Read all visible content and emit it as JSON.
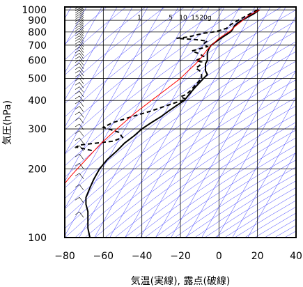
{
  "chart_data": {
    "type": "line",
    "title": "",
    "xlabel": "気温(実線), 露点(破線)",
    "ylabel": "気圧(hPa)",
    "xlim": [
      -80,
      40
    ],
    "ylim": [
      1030,
      100
    ],
    "y_scale": "log",
    "grid": true,
    "x_ticks": [
      -80,
      -60,
      -40,
      -20,
      0,
      20,
      40
    ],
    "x_tick_labels": [
      "−80",
      "−60",
      "−40",
      "−20",
      "0",
      "20",
      "40"
    ],
    "y_ticks": [
      100,
      200,
      300,
      400,
      500,
      600,
      700,
      800,
      900,
      1000
    ],
    "y_tick_labels": [
      "100",
      "200",
      "300",
      "400",
      "500",
      "600",
      "700",
      "800",
      "900",
      "1000"
    ],
    "mixing_ratio_labels": [
      {
        "text": "1",
        "value": 1
      },
      {
        "text": "5",
        "value": 5
      },
      {
        "text": "10",
        "value": 10
      },
      {
        "text": "15",
        "value": 15
      },
      {
        "text": "20g",
        "value": 20
      }
    ],
    "series": [
      {
        "key": "temperature",
        "style": "solid",
        "color": "#000000",
        "points": [
          [
            21,
            1000
          ],
          [
            18,
            960
          ],
          [
            14,
            920
          ],
          [
            10,
            880
          ],
          [
            8,
            850
          ],
          [
            7,
            820
          ],
          [
            6,
            800
          ],
          [
            4,
            780
          ],
          [
            2,
            760
          ],
          [
            0,
            740
          ],
          [
            -2,
            720
          ],
          [
            -4,
            700
          ],
          [
            -5,
            680
          ],
          [
            -6,
            650
          ],
          [
            -6,
            620
          ],
          [
            -6,
            600
          ],
          [
            -7,
            580
          ],
          [
            -7,
            560
          ],
          [
            -7,
            540
          ],
          [
            -6,
            520
          ],
          [
            -8,
            500
          ],
          [
            -10,
            480
          ],
          [
            -12,
            460
          ],
          [
            -14,
            440
          ],
          [
            -16,
            420
          ],
          [
            -18,
            400
          ],
          [
            -22,
            380
          ],
          [
            -26,
            360
          ],
          [
            -30,
            340
          ],
          [
            -35,
            320
          ],
          [
            -40,
            300
          ],
          [
            -44,
            280
          ],
          [
            -49,
            260
          ],
          [
            -53,
            240
          ],
          [
            -58,
            220
          ],
          [
            -62,
            200
          ],
          [
            -65,
            180
          ],
          [
            -67,
            165
          ],
          [
            -69,
            150
          ],
          [
            -69,
            140
          ],
          [
            -68,
            130
          ],
          [
            -68,
            120
          ],
          [
            -68,
            110
          ],
          [
            -67,
            100
          ]
        ]
      },
      {
        "key": "dewpoint",
        "style": "dashed",
        "color": "#000000",
        "points": [
          [
            20,
            1000
          ],
          [
            16,
            960
          ],
          [
            13,
            930
          ],
          [
            10,
            900
          ],
          [
            6,
            860
          ],
          [
            4,
            830
          ],
          [
            0,
            810
          ],
          [
            -3,
            800
          ],
          [
            -8,
            790
          ],
          [
            -12,
            775
          ],
          [
            -16,
            760
          ],
          [
            -22,
            750
          ],
          [
            -12,
            740
          ],
          [
            -6,
            730
          ],
          [
            -8,
            710
          ],
          [
            -6,
            690
          ],
          [
            -10,
            675
          ],
          [
            -14,
            660
          ],
          [
            -10,
            640
          ],
          [
            -8,
            625
          ],
          [
            -10,
            610
          ],
          [
            -12,
            600
          ],
          [
            -9,
            590
          ],
          [
            -10,
            570
          ],
          [
            -12,
            555
          ],
          [
            -10,
            540
          ],
          [
            -9,
            520
          ],
          [
            -9,
            500
          ],
          [
            -11,
            480
          ],
          [
            -13,
            460
          ],
          [
            -15,
            440
          ],
          [
            -17,
            425
          ],
          [
            -20,
            415
          ],
          [
            -17,
            405
          ],
          [
            -21,
            395
          ],
          [
            -27,
            380
          ],
          [
            -35,
            360
          ],
          [
            -45,
            340
          ],
          [
            -55,
            320
          ],
          [
            -60,
            305
          ],
          [
            -52,
            290
          ],
          [
            -50,
            275
          ],
          [
            -55,
            265
          ],
          [
            -72,
            255
          ],
          [
            -74,
            250
          ],
          [
            -65,
            240
          ]
        ]
      },
      {
        "key": "parcel",
        "style": "solid",
        "color": "#ff0000",
        "points": [
          [
            21,
            1000
          ],
          [
            15,
            940
          ],
          [
            11,
            880
          ],
          [
            8,
            840
          ],
          [
            6,
            810
          ],
          [
            3,
            780
          ],
          [
            0,
            750
          ],
          [
            -3,
            710
          ],
          [
            -6,
            670
          ],
          [
            -9,
            620
          ],
          [
            -12,
            580
          ],
          [
            -16,
            540
          ],
          [
            -20,
            500
          ],
          [
            -27,
            450
          ],
          [
            -35,
            400
          ],
          [
            -44,
            350
          ],
          [
            -53,
            300
          ],
          [
            -61,
            260
          ],
          [
            -69,
            220
          ],
          [
            -76,
            190
          ],
          [
            -82,
            165
          ],
          [
            -88,
            145
          ],
          [
            -94,
            125
          ],
          [
            -100,
            105
          ]
        ]
      }
    ],
    "wind_barbs_present": true
  }
}
